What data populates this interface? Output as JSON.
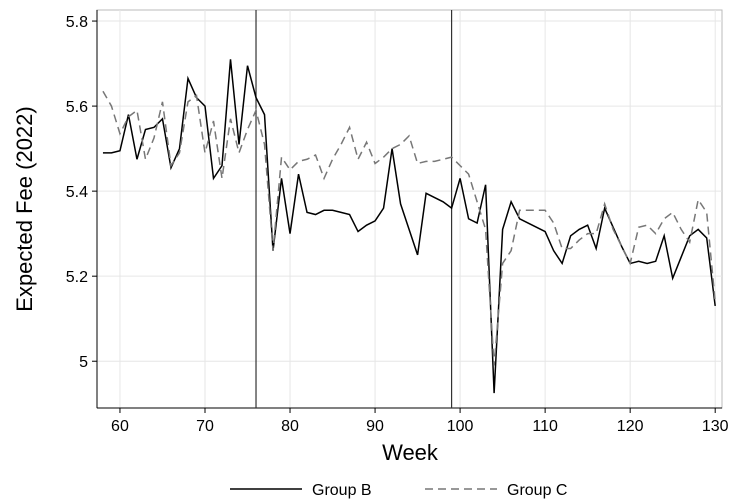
{
  "chart_data": {
    "type": "line",
    "x_label": "Week",
    "y_label": "Expected Fee (2022)",
    "x": [
      58,
      59,
      60,
      61,
      62,
      63,
      64,
      65,
      66,
      67,
      68,
      69,
      70,
      71,
      72,
      73,
      74,
      75,
      76,
      77,
      78,
      79,
      80,
      81,
      82,
      83,
      84,
      85,
      86,
      87,
      88,
      89,
      90,
      91,
      92,
      93,
      94,
      95,
      96,
      97,
      98,
      99,
      100,
      101,
      102,
      103,
      104,
      105,
      106,
      107,
      108,
      109,
      110,
      111,
      112,
      113,
      114,
      115,
      116,
      117,
      118,
      119,
      120,
      121,
      122,
      123,
      124,
      125,
      126,
      127,
      128,
      129,
      130
    ],
    "series": [
      {
        "name": "Group B",
        "color": "#000000",
        "dash": "solid",
        "values": [
          5.49,
          5.49,
          5.495,
          5.58,
          5.475,
          5.545,
          5.55,
          5.57,
          5.455,
          5.5,
          5.665,
          5.62,
          5.6,
          5.43,
          5.46,
          5.71,
          5.51,
          5.695,
          5.62,
          5.58,
          5.26,
          5.43,
          5.3,
          5.44,
          5.35,
          5.345,
          5.355,
          5.355,
          5.35,
          5.345,
          5.305,
          5.32,
          5.33,
          5.36,
          5.5,
          5.37,
          5.31,
          5.25,
          5.395,
          5.385,
          5.375,
          5.36,
          5.43,
          5.335,
          5.325,
          5.415,
          4.925,
          5.31,
          5.375,
          5.335,
          5.325,
          5.315,
          5.305,
          5.26,
          5.23,
          5.295,
          5.31,
          5.32,
          5.265,
          5.36,
          5.315,
          5.27,
          5.23,
          5.235,
          5.23,
          5.235,
          5.295,
          5.195,
          5.245,
          5.295,
          5.31,
          5.29,
          5.13
        ]
      },
      {
        "name": "Group C",
        "color": "#777777",
        "dash": "dashed",
        "values": [
          5.635,
          5.6,
          5.535,
          5.575,
          5.59,
          5.475,
          5.525,
          5.61,
          5.46,
          5.49,
          5.61,
          5.625,
          5.49,
          5.565,
          5.43,
          5.57,
          5.49,
          5.545,
          5.59,
          5.51,
          5.26,
          5.48,
          5.45,
          5.47,
          5.475,
          5.485,
          5.43,
          5.475,
          5.51,
          5.55,
          5.475,
          5.515,
          5.465,
          5.48,
          5.5,
          5.51,
          5.53,
          5.465,
          5.47,
          5.47,
          5.475,
          5.48,
          5.46,
          5.44,
          5.375,
          5.31,
          4.99,
          5.23,
          5.26,
          5.355,
          5.355,
          5.355,
          5.355,
          5.325,
          5.265,
          5.265,
          5.285,
          5.3,
          5.3,
          5.37,
          5.31,
          5.27,
          5.23,
          5.315,
          5.32,
          5.3,
          5.335,
          5.35,
          5.31,
          5.28,
          5.38,
          5.35,
          5.14
        ]
      }
    ],
    "vlines": [
      76,
      99
    ],
    "xlim": [
      57.3,
      130.8
    ],
    "xticks": [
      60,
      70,
      80,
      90,
      100,
      110,
      120,
      130
    ],
    "ylim": [
      4.89,
      5.826
    ],
    "yticks": [
      5,
      5.2,
      5.4,
      5.6,
      5.8
    ],
    "grid": true,
    "legend": "bottom"
  }
}
